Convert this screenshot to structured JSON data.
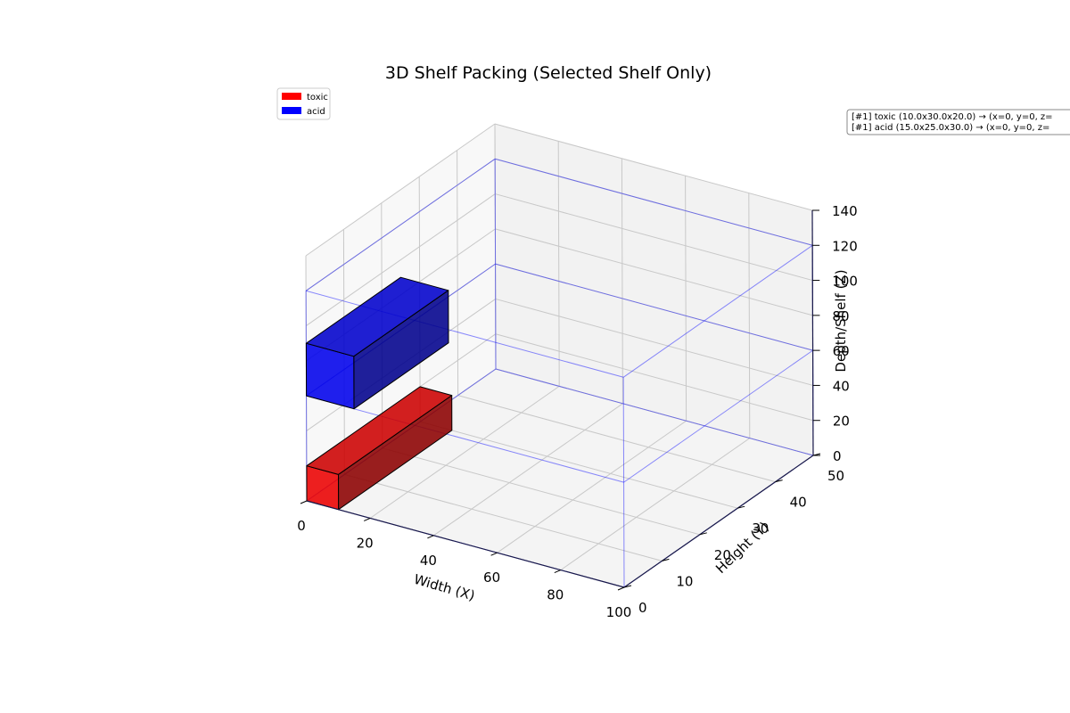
{
  "chart_data": {
    "type": "3d-bar",
    "title": "3D Shelf Packing (Selected Shelf Only)",
    "xlabel": "Width (X)",
    "ylabel": "Height (Y)",
    "zlabel": "Depth/Shelf (Z)",
    "xlim": [
      0,
      100
    ],
    "ylim": [
      0,
      50
    ],
    "zlim": [
      0,
      140
    ],
    "xticks": [
      0,
      20,
      40,
      60,
      80,
      100
    ],
    "yticks": [
      0,
      10,
      20,
      30,
      40,
      50
    ],
    "zticks": [
      0,
      20,
      40,
      60,
      80,
      100,
      120,
      140
    ],
    "grid": true,
    "legend_position": "top-left",
    "series": [
      {
        "name": "toxic",
        "color": "#ff0000",
        "x": 0,
        "y": 0,
        "z": 0,
        "dx": 10,
        "dy": 30,
        "dz": 20
      },
      {
        "name": "acid",
        "color": "#0000ff",
        "x": 0,
        "y": 0,
        "z": 60,
        "dx": 15,
        "dy": 25,
        "dz": 30
      }
    ],
    "shelf_frame_z": [
      0,
      60,
      120
    ],
    "shelf_frame_color": "#0000ff",
    "annotations": [
      "[#1] toxic (10.0x30.0x20.0) → (x=0, y=0, z=",
      "[#1] acid (15.0x25.0x30.0) → (x=0, y=0, z="
    ]
  }
}
